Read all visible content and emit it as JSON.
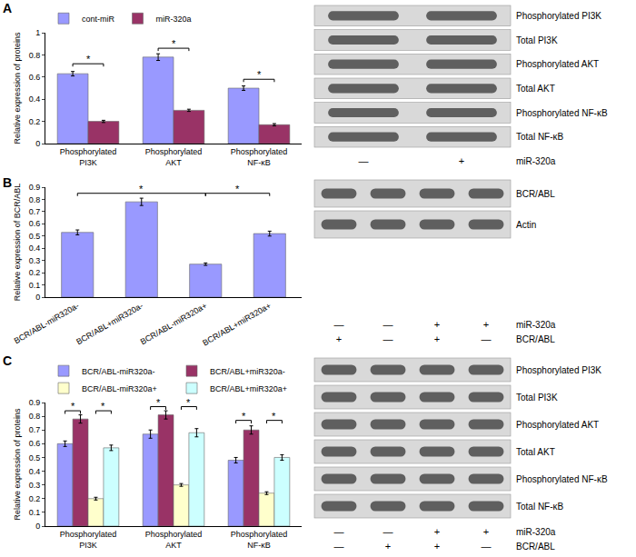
{
  "panel_labels": [
    "A",
    "B",
    "C"
  ],
  "chart_data": [
    {
      "type": "bar",
      "y_label": "Relative expression of proteins",
      "categories": [
        "Phosphorylated PI3K",
        "Phosphorylated AKT",
        "Phosphorylated NF-κB"
      ],
      "series": [
        {
          "name": "cont-miR",
          "color": "#9999ff",
          "values": [
            0.63,
            0.78,
            0.5
          ],
          "errors": [
            0.02,
            0.03,
            0.02
          ]
        },
        {
          "name": "miR-320a",
          "color": "#993366",
          "values": [
            0.2,
            0.3,
            0.17
          ],
          "errors": [
            0.01,
            0.01,
            0.01
          ]
        }
      ],
      "ylim": [
        0,
        1
      ],
      "yticks": [
        0,
        0.2,
        0.4,
        0.6,
        0.8,
        1
      ],
      "grid": false,
      "legend": "top",
      "brackets": [
        {
          "from": [
            0,
            0
          ],
          "to": [
            0,
            1
          ],
          "y": 0.72,
          "text": "*"
        },
        {
          "from": [
            1,
            0
          ],
          "to": [
            1,
            1
          ],
          "y": 0.86,
          "text": "*"
        },
        {
          "from": [
            2,
            0
          ],
          "to": [
            2,
            1
          ],
          "y": 0.58,
          "text": "*"
        }
      ]
    },
    {
      "type": "bar",
      "y_label": "Relative expression of BCR/ABL",
      "categories": [
        "BCR/ABL-miR320a-",
        "BCR/ABL+miR320a-",
        "BCR/ABL-miR320a+",
        "BCR/ABL+miR320a+"
      ],
      "series": [
        {
          "name": "BCR/ABL",
          "color": "#9999ff",
          "values": [
            0.53,
            0.78,
            0.27,
            0.52
          ],
          "errors": [
            0.02,
            0.03,
            0.01,
            0.02
          ]
        }
      ],
      "ylim": [
        0,
        0.9
      ],
      "yticks": [
        0,
        0.1,
        0.2,
        0.3,
        0.4,
        0.5,
        0.6,
        0.7,
        0.8,
        0.9
      ],
      "grid": false,
      "brackets": [
        {
          "from": [
            0,
            0
          ],
          "to": [
            2,
            0
          ],
          "y": 0.85,
          "text": "*"
        },
        {
          "from": [
            2,
            0
          ],
          "to": [
            3,
            0
          ],
          "y": 0.85,
          "text": "*"
        }
      ]
    },
    {
      "type": "bar",
      "y_label": "Relative expression of proteins",
      "categories": [
        "Phosphorylated PI3K",
        "Phosphorylated AKT",
        "Phosphorylated NF-κB"
      ],
      "series": [
        {
          "name": "BCR/ABL-miR320a-",
          "color": "#9999ff",
          "values": [
            0.6,
            0.67,
            0.48
          ],
          "errors": [
            0.02,
            0.03,
            0.02
          ]
        },
        {
          "name": "BCR/ABL+miR320a-",
          "color": "#993366",
          "values": [
            0.78,
            0.81,
            0.7
          ],
          "errors": [
            0.03,
            0.03,
            0.03
          ]
        },
        {
          "name": "BCR/ABL-miR320a+",
          "color": "#ffffcc",
          "values": [
            0.2,
            0.3,
            0.24
          ],
          "errors": [
            0.01,
            0.01,
            0.01
          ]
        },
        {
          "name": "BCR/ABL+miR320a+",
          "color": "#ccffff",
          "values": [
            0.57,
            0.68,
            0.5
          ],
          "errors": [
            0.02,
            0.03,
            0.02
          ]
        }
      ],
      "ylim": [
        0,
        0.9
      ],
      "yticks": [
        0,
        0.1,
        0.2,
        0.3,
        0.4,
        0.5,
        0.6,
        0.7,
        0.8,
        0.9
      ],
      "grid": false,
      "legend": "top",
      "brackets": [
        {
          "from": [
            0,
            0
          ],
          "to": [
            0,
            1
          ],
          "y": 0.84,
          "text": "*"
        },
        {
          "from": [
            0,
            2
          ],
          "to": [
            0,
            3
          ],
          "y": 0.84,
          "text": "*"
        },
        {
          "from": [
            1,
            0
          ],
          "to": [
            1,
            1
          ],
          "y": 0.87,
          "text": "*"
        },
        {
          "from": [
            1,
            2
          ],
          "to": [
            1,
            3
          ],
          "y": 0.87,
          "text": "*"
        },
        {
          "from": [
            2,
            0
          ],
          "to": [
            2,
            1
          ],
          "y": 0.77,
          "text": "*"
        },
        {
          "from": [
            2,
            2
          ],
          "to": [
            2,
            3
          ],
          "y": 0.77,
          "text": "*"
        }
      ]
    }
  ],
  "blots": [
    {
      "rows": [
        "Phosphorylated PI3K",
        "Total PI3K",
        "Phosphorylated AKT",
        "Total AKT",
        "Phosphorylated NF-κB",
        "Total NF-κB"
      ],
      "conditions": [
        {
          "name": "miR-320a",
          "lanes": [
            "—",
            "+"
          ]
        }
      ]
    },
    {
      "rows": [
        "BCR/ABL",
        "Actin"
      ],
      "conditions": [
        {
          "name": "miR-320a",
          "lanes": [
            "—",
            "—",
            "+",
            "+"
          ]
        },
        {
          "name": "BCR/ABL",
          "lanes": [
            "+",
            "—",
            "+",
            "—"
          ]
        }
      ]
    },
    {
      "rows": [
        "Phosphorylated PI3K",
        "Total PI3K",
        "Phosphorylated AKT",
        "Total AKT",
        "Phosphorylated NF-κB",
        "Total NF-κB"
      ],
      "conditions": [
        {
          "name": "miR-320a",
          "lanes": [
            "—",
            "—",
            "+",
            "+"
          ]
        },
        {
          "name": "BCR/ABL",
          "lanes": [
            "—",
            "+",
            "+",
            "—"
          ]
        }
      ]
    }
  ]
}
